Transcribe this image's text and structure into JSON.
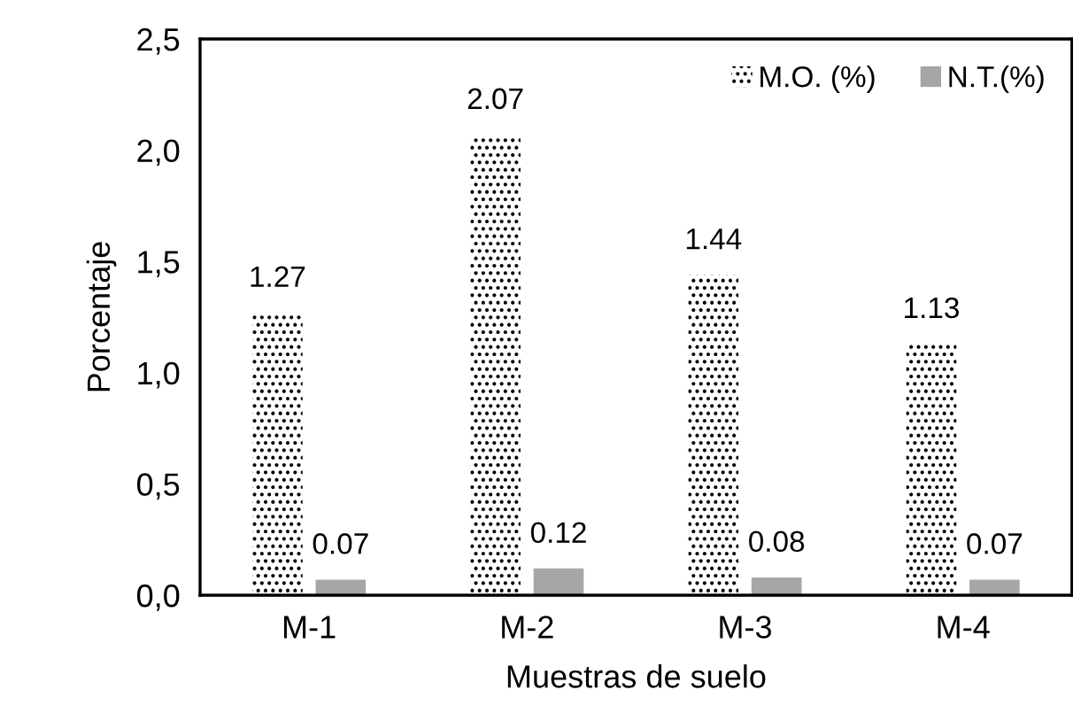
{
  "chart_data": {
    "type": "bar",
    "xlabel": "Muestras de suelo",
    "ylabel": "Porcentaje",
    "categories": [
      "M-1",
      "M-2",
      "M-3",
      "M-4"
    ],
    "series": [
      {
        "name": "M.O. (%)",
        "color": "#ffffff",
        "values": [
          1.27,
          2.07,
          1.44,
          1.13
        ]
      },
      {
        "name": "N.T.(%)",
        "color": "#a6a6a6",
        "values": [
          0.07,
          0.12,
          0.08,
          0.07
        ]
      }
    ],
    "ylim": [
      0,
      2.5
    ],
    "yticks": [
      {
        "value": 0,
        "label": "0,0"
      },
      {
        "value": 0.5,
        "label": "0,5"
      },
      {
        "value": 1,
        "label": "1,0"
      },
      {
        "value": 1.5,
        "label": "1,5"
      },
      {
        "value": 2,
        "label": "2,0"
      },
      {
        "value": 2.5,
        "label": "2,5"
      }
    ],
    "data_labels": true,
    "legend": "top right",
    "grid": false
  }
}
